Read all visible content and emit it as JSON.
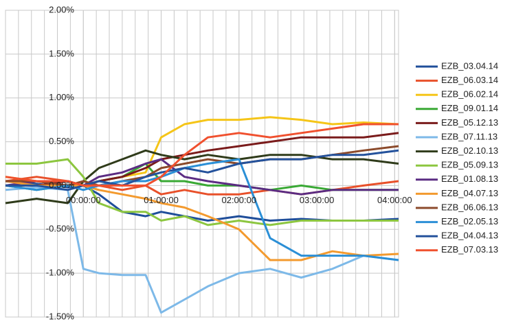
{
  "chart_data": {
    "type": "line",
    "x": [
      -1,
      -0.6,
      -0.2,
      0,
      0.2,
      0.5,
      0.8,
      1,
      1.3,
      1.6,
      2,
      2.4,
      2.8,
      3.2,
      3.6,
      4.05
    ],
    "xlim": [
      -1,
      4.05
    ],
    "xticks": [
      {
        "value": 0,
        "label": "00:00:00"
      },
      {
        "value": 1,
        "label": "01:00:00"
      },
      {
        "value": 2,
        "label": "02:00:00"
      },
      {
        "value": 3,
        "label": "03:00:00"
      },
      {
        "value": 4,
        "label": "04:00:00"
      }
    ],
    "ylim": [
      -1.5,
      2
    ],
    "yticks": [
      {
        "value": 2,
        "label": "2.00%"
      },
      {
        "value": 1.5,
        "label": "1.50%"
      },
      {
        "value": 1,
        "label": "1.00%"
      },
      {
        "value": 0.5,
        "label": "0.50%"
      },
      {
        "value": 0,
        "label": "0.00%"
      },
      {
        "value": -0.5,
        "label": "-0.50%"
      },
      {
        "value": -1,
        "label": "-1.00%"
      },
      {
        "value": -1.5,
        "label": "-1.50%"
      }
    ],
    "grid": true,
    "legend": "right",
    "series": [
      {
        "name": "EZB_03.04.14",
        "color": "#1f4e9a",
        "values": [
          0.05,
          0.02,
          -0.02,
          0.0,
          -0.1,
          -0.3,
          -0.35,
          -0.3,
          -0.35,
          -0.4,
          -0.35,
          -0.4,
          -0.38,
          -0.4,
          -0.4,
          -0.38
        ]
      },
      {
        "name": "EZB_06.03.14",
        "color": "#e8502a",
        "values": [
          0.05,
          0.1,
          0.05,
          0.0,
          0.0,
          -0.05,
          0.0,
          -0.1,
          -0.05,
          -0.1,
          -0.1,
          -0.05,
          -0.1,
          -0.05,
          0.0,
          0.05
        ]
      },
      {
        "name": "EZB_06.02.14",
        "color": "#f5c518",
        "values": [
          0.1,
          0.05,
          0.0,
          0.0,
          0.05,
          0.1,
          0.15,
          0.55,
          0.7,
          0.75,
          0.75,
          0.78,
          0.75,
          0.7,
          0.72,
          0.7
        ]
      },
      {
        "name": "EZB_09.01.14",
        "color": "#3aa935",
        "values": [
          0.0,
          -0.05,
          0.0,
          0.0,
          0.05,
          0.1,
          0.25,
          0.05,
          0.05,
          0.0,
          0.0,
          -0.05,
          0.0,
          -0.05,
          -0.05,
          -0.05
        ]
      },
      {
        "name": "EZB_05.12.13",
        "color": "#7a1b1b",
        "values": [
          0.0,
          0.0,
          0.05,
          0.0,
          0.05,
          0.1,
          0.2,
          0.3,
          0.35,
          0.4,
          0.45,
          0.5,
          0.55,
          0.55,
          0.55,
          0.6
        ]
      },
      {
        "name": "EZB_07.11.13",
        "color": "#7db9e8",
        "values": [
          -0.05,
          -0.02,
          -0.05,
          -0.95,
          -1.0,
          -1.02,
          -1.02,
          -1.45,
          -1.3,
          -1.15,
          -1.0,
          -0.95,
          -1.05,
          -0.95,
          -0.8,
          -0.85
        ]
      },
      {
        "name": "EZB_02.10.13",
        "color": "#2f3b1a",
        "values": [
          -0.2,
          -0.15,
          -0.2,
          0.05,
          0.2,
          0.3,
          0.4,
          0.35,
          0.3,
          0.35,
          0.3,
          0.35,
          0.35,
          0.3,
          0.3,
          0.25
        ]
      },
      {
        "name": "EZB_05.09.13",
        "color": "#8cc63f",
        "values": [
          0.25,
          0.25,
          0.3,
          0.1,
          -0.2,
          -0.3,
          -0.3,
          -0.4,
          -0.35,
          -0.45,
          -0.4,
          -0.45,
          -0.4,
          -0.4,
          -0.4,
          -0.4
        ]
      },
      {
        "name": "EZB_01.08.13",
        "color": "#5b2c83",
        "values": [
          0.0,
          0.05,
          0.0,
          0.0,
          0.1,
          0.15,
          0.25,
          0.3,
          0.1,
          0.05,
          0.0,
          -0.05,
          -0.1,
          -0.05,
          -0.05,
          -0.05
        ]
      },
      {
        "name": "EZB_04.07.13",
        "color": "#f39a2e",
        "values": [
          0.05,
          0.0,
          0.0,
          0.0,
          -0.05,
          -0.1,
          -0.15,
          -0.2,
          -0.25,
          -0.35,
          -0.5,
          -0.85,
          -0.85,
          -0.75,
          -0.8,
          -0.78
        ]
      },
      {
        "name": "EZB_06.06.13",
        "color": "#8b4a2b",
        "values": [
          0.05,
          0.05,
          0.0,
          0.05,
          0.0,
          0.05,
          0.1,
          0.2,
          0.25,
          0.3,
          0.25,
          0.3,
          0.3,
          0.35,
          0.4,
          0.45
        ]
      },
      {
        "name": "EZB_02.05.13",
        "color": "#2b8fd6",
        "values": [
          0.0,
          -0.05,
          0.0,
          -0.05,
          0.0,
          0.05,
          0.05,
          0.1,
          0.2,
          0.25,
          0.3,
          -0.6,
          -0.8,
          -0.8,
          -0.8,
          -0.85
        ]
      },
      {
        "name": "EZB_04.04.13",
        "color": "#24529c",
        "values": [
          0.0,
          0.0,
          -0.05,
          0.0,
          0.05,
          0.0,
          0.1,
          0.15,
          0.2,
          0.15,
          0.25,
          0.3,
          0.3,
          0.35,
          0.35,
          0.4
        ]
      },
      {
        "name": "EZB_07.03.13",
        "color": "#f0502e",
        "values": [
          0.1,
          0.05,
          0.05,
          0.0,
          0.0,
          0.0,
          0.0,
          0.1,
          0.35,
          0.55,
          0.6,
          0.55,
          0.6,
          0.65,
          0.7,
          0.7
        ]
      }
    ]
  }
}
